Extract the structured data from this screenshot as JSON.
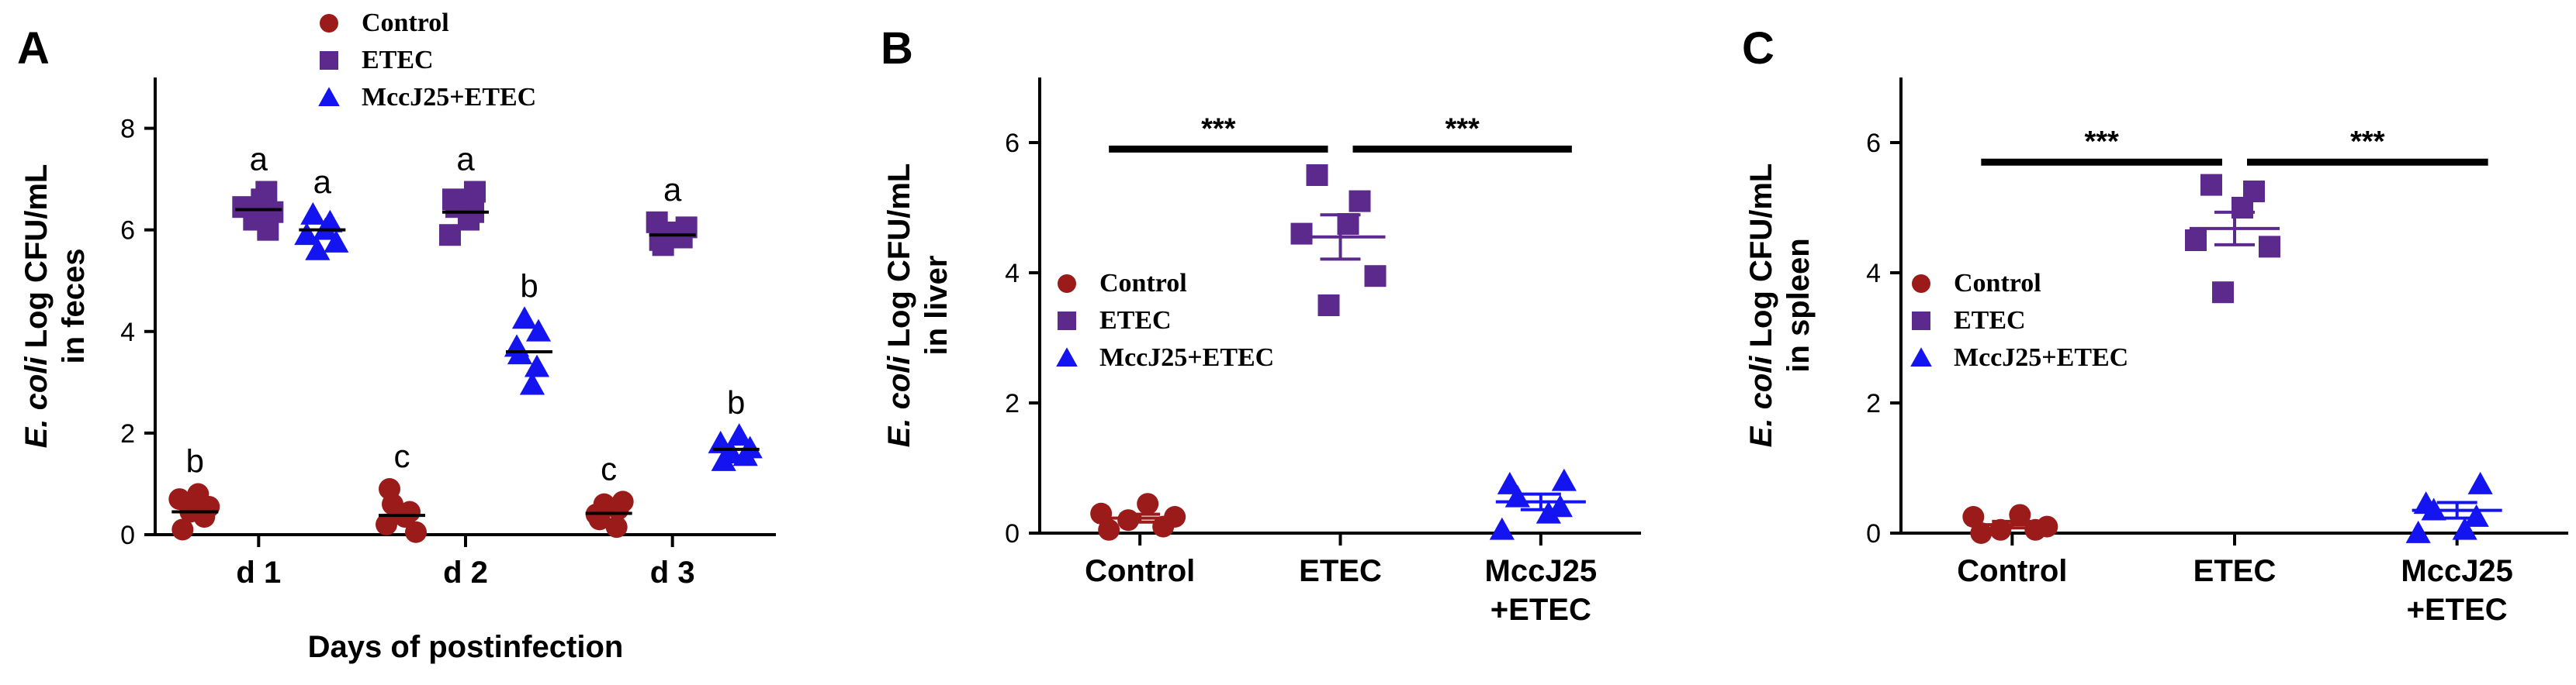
{
  "colors": {
    "control": "#9B1B1B",
    "etec": "#5B2A8C",
    "mccj25": "#1414F0"
  },
  "chart_data": [
    {
      "panel": "A",
      "type": "scatter",
      "ylabel": {
        "italic": "E. coli",
        "main": " Log CFU/mL",
        "line2": "in feces"
      },
      "xlabel": "Days of postinfection",
      "categories": [
        "d 1",
        "d 2",
        "d 3"
      ],
      "ylim": [
        0,
        9
      ],
      "yticks": [
        0,
        2,
        4,
        6,
        8
      ],
      "legend": {
        "placement": "top-center",
        "entries": [
          "Control",
          "ETEC",
          "MccJ25+ETEC"
        ]
      },
      "series": [
        {
          "name": "Control",
          "marker": "circle",
          "color": "#9B1B1B",
          "groups": [
            {
              "points": [
                0.1,
                0.35,
                0.45,
                0.55,
                0.7,
                0.8
              ],
              "mean": 0.45,
              "letter": "b"
            },
            {
              "points": [
                0.05,
                0.2,
                0.35,
                0.45,
                0.6,
                0.9
              ],
              "mean": 0.38,
              "letter": "c"
            },
            {
              "points": [
                0.15,
                0.3,
                0.4,
                0.5,
                0.6,
                0.65
              ],
              "mean": 0.42,
              "letter": "c"
            }
          ]
        },
        {
          "name": "ETEC",
          "marker": "square",
          "color": "#5B2A8C",
          "groups": [
            {
              "points": [
                6.0,
                6.2,
                6.35,
                6.45,
                6.6,
                6.75
              ],
              "mean": 6.4,
              "letter": "a"
            },
            {
              "points": [
                5.9,
                6.2,
                6.35,
                6.45,
                6.6,
                6.75
              ],
              "mean": 6.35,
              "letter": "a"
            },
            {
              "points": [
                5.7,
                5.8,
                5.85,
                5.95,
                6.05,
                6.15
              ],
              "mean": 5.9,
              "letter": "a"
            }
          ]
        },
        {
          "name": "MccJ25+ETEC",
          "marker": "triangle",
          "color": "#1414F0",
          "groups": [
            {
              "points": [
                5.6,
                5.75,
                5.9,
                6.0,
                6.15,
                6.3
              ],
              "mean": 6.0,
              "letter": "a"
            },
            {
              "points": [
                2.95,
                3.3,
                3.55,
                3.7,
                4.0,
                4.25
              ],
              "mean": 3.6,
              "letter": "b"
            },
            {
              "points": [
                1.45,
                1.55,
                1.6,
                1.7,
                1.8,
                1.95
              ],
              "mean": 1.68,
              "letter": "b"
            }
          ]
        }
      ]
    },
    {
      "panel": "B",
      "type": "scatter",
      "ylabel": {
        "italic": "E. coli",
        "main": " Log CFU/mL",
        "line2": "in liver"
      },
      "xlabel": "",
      "categories": [
        "Control",
        "ETEC",
        [
          "MccJ25",
          "+ETEC"
        ]
      ],
      "ylim": [
        0,
        7
      ],
      "yticks": [
        0,
        2,
        4,
        6
      ],
      "legend": {
        "placement": "center-left",
        "entries": [
          "Control",
          "ETEC",
          "MccJ25+ETEC"
        ]
      },
      "groups": [
        {
          "name": "Control",
          "marker": "circle",
          "color": "#9B1B1B",
          "points": [
            0.05,
            0.1,
            0.2,
            0.25,
            0.3,
            0.45
          ],
          "mean": 0.23,
          "sem": 0.06
        },
        {
          "name": "ETEC",
          "marker": "square",
          "color": "#5B2A8C",
          "points": [
            3.5,
            3.95,
            4.6,
            4.75,
            5.1,
            5.5
          ],
          "mean": 4.55,
          "sem": 0.34
        },
        {
          "name": "MccJ25+ETEC",
          "marker": "triangle",
          "color": "#1414F0",
          "points": [
            0.05,
            0.3,
            0.4,
            0.55,
            0.75,
            0.8
          ],
          "mean": 0.48,
          "sem": 0.12
        }
      ],
      "significance": [
        {
          "from": 0,
          "to": 1,
          "y": 5.9,
          "label": "***"
        },
        {
          "from": 1,
          "to": 2,
          "y": 5.9,
          "label": "***"
        }
      ]
    },
    {
      "panel": "C",
      "type": "scatter",
      "ylabel": {
        "italic": "E. coli",
        "main": " Log CFU/mL",
        "line2": "in spleen"
      },
      "xlabel": "",
      "categories": [
        "Control",
        "ETEC",
        [
          "MccJ25",
          "+ETEC"
        ]
      ],
      "ylim": [
        0,
        7
      ],
      "yticks": [
        0,
        2,
        4,
        6
      ],
      "legend": {
        "placement": "center-left",
        "entries": [
          "Control",
          "ETEC",
          "MccJ25+ETEC"
        ]
      },
      "groups": [
        {
          "name": "Control",
          "marker": "circle",
          "color": "#9B1B1B",
          "points": [
            0.0,
            0.05,
            0.05,
            0.1,
            0.25,
            0.28
          ],
          "mean": 0.13,
          "sem": 0.05
        },
        {
          "name": "ETEC",
          "marker": "square",
          "color": "#5B2A8C",
          "points": [
            3.7,
            4.4,
            4.5,
            5.0,
            5.25,
            5.35
          ],
          "mean": 4.68,
          "sem": 0.25
        },
        {
          "name": "MccJ25+ETEC",
          "marker": "triangle",
          "color": "#1414F0",
          "points": [
            0.0,
            0.05,
            0.25,
            0.35,
            0.45,
            0.75
          ],
          "mean": 0.35,
          "sem": 0.12
        }
      ],
      "significance": [
        {
          "from": 0,
          "to": 1,
          "y": 5.7,
          "label": "***"
        },
        {
          "from": 1,
          "to": 2,
          "y": 5.7,
          "label": "***"
        }
      ]
    }
  ]
}
